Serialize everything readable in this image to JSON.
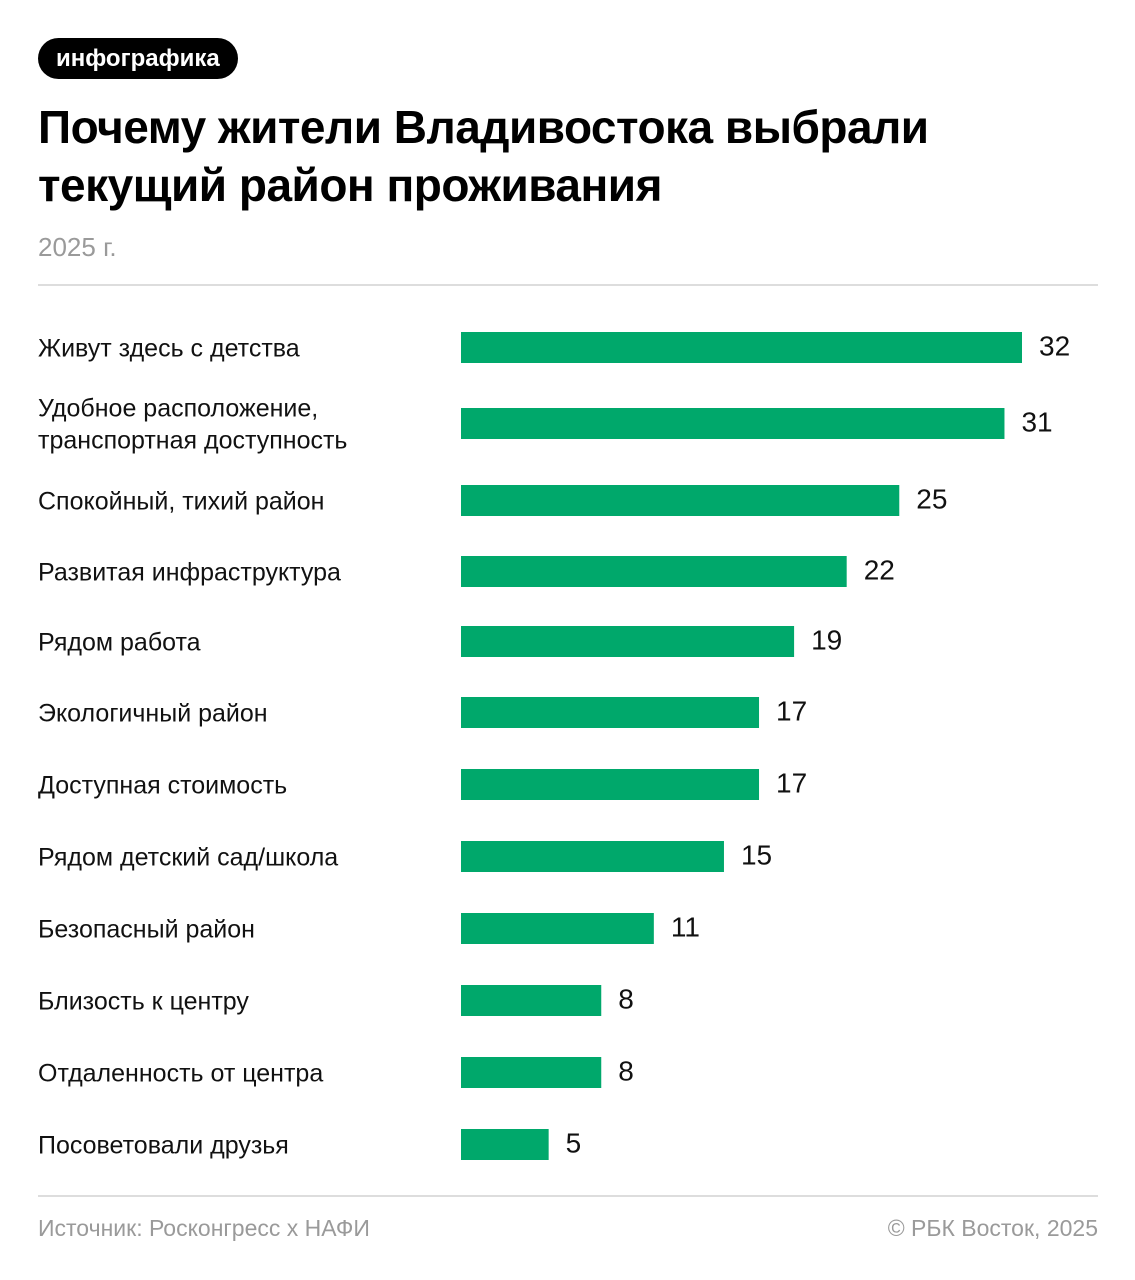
{
  "badge": "инфографика",
  "title": "Почему жители Владивостока выбрали текущий район проживания",
  "subtitle": "2025 г.",
  "footer": {
    "source": "Источник: Росконгресс х НАФИ",
    "copyright": "© РБК Восток, 2025"
  },
  "colors": {
    "bar": "#00a86b",
    "text": "#111111",
    "muted": "#9a9a9a",
    "badge_bg": "#000000"
  },
  "chart_data": {
    "type": "bar",
    "orientation": "horizontal",
    "title": "Почему жители Владивостока выбрали текущий район проживания",
    "subtitle": "2025 г.",
    "xlabel": "",
    "ylabel": "",
    "grid": false,
    "legend": "none",
    "xlim": [
      0,
      32
    ],
    "categories": [
      [
        "Живут здесь с детства"
      ],
      [
        "Удобное расположение,",
        "транспортная доступность"
      ],
      [
        "Спокойный, тихий район"
      ],
      [
        "Развитая инфраструктура"
      ],
      [
        "Рядом работа"
      ],
      [
        "Экологичный район"
      ],
      [
        "Доступная стоимость"
      ],
      [
        "Рядом детский сад/школа"
      ],
      [
        "Безопасный район"
      ],
      [
        "Близость к центру"
      ],
      [
        "Отдаленность от центра"
      ],
      [
        "Посоветовали друзья"
      ]
    ],
    "values": [
      32,
      31,
      25,
      22,
      19,
      17,
      17,
      15,
      11,
      8,
      8,
      5
    ]
  }
}
